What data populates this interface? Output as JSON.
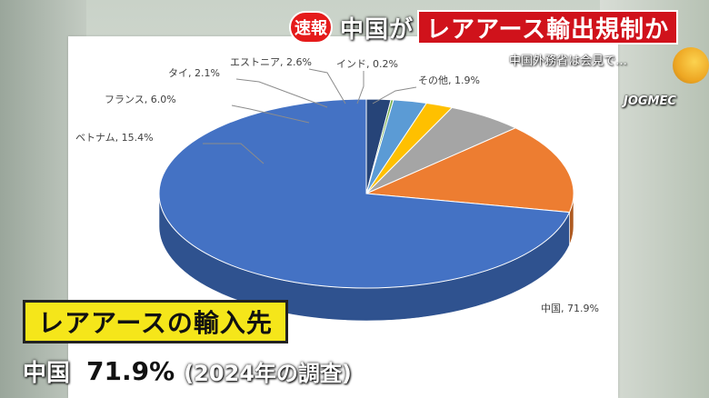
{
  "headline": {
    "badge": "速報",
    "part1": "中国が",
    "part2": "レアアース輸出規制か"
  },
  "sub_headline": "中国外務省は会見で…",
  "credit": "JOGMEC",
  "caption": "レアアースの輸入先",
  "stat": {
    "country": "中国",
    "value": "71.9%",
    "note": "(2024年の調査)"
  },
  "chart_data": {
    "type": "pie",
    "labels": [
      "中国",
      "ベトナム",
      "フランス",
      "タイ",
      "エストニア",
      "インド",
      "その他"
    ],
    "values": [
      71.9,
      15.4,
      6.0,
      2.1,
      2.6,
      0.2,
      1.9
    ],
    "data_labels": [
      "中国, 71.9%",
      "ベトナム, 15.4%",
      "フランス, 6.0%",
      "タイ, 2.1%",
      "エストニア, 2.6%",
      "インド, 0.2%",
      "その他, 1.9%"
    ],
    "colors": [
      "#4472c4",
      "#ed7d31",
      "#a5a5a5",
      "#ffc000",
      "#5b9bd5",
      "#70ad47",
      "#264478"
    ],
    "side_colors": [
      "#2f528f",
      "#ae5a21",
      "#7c7c7c",
      "#bf9000",
      "#41719c",
      "#507e32",
      "#1a2f54"
    ],
    "style": "3d",
    "legend": "none"
  }
}
